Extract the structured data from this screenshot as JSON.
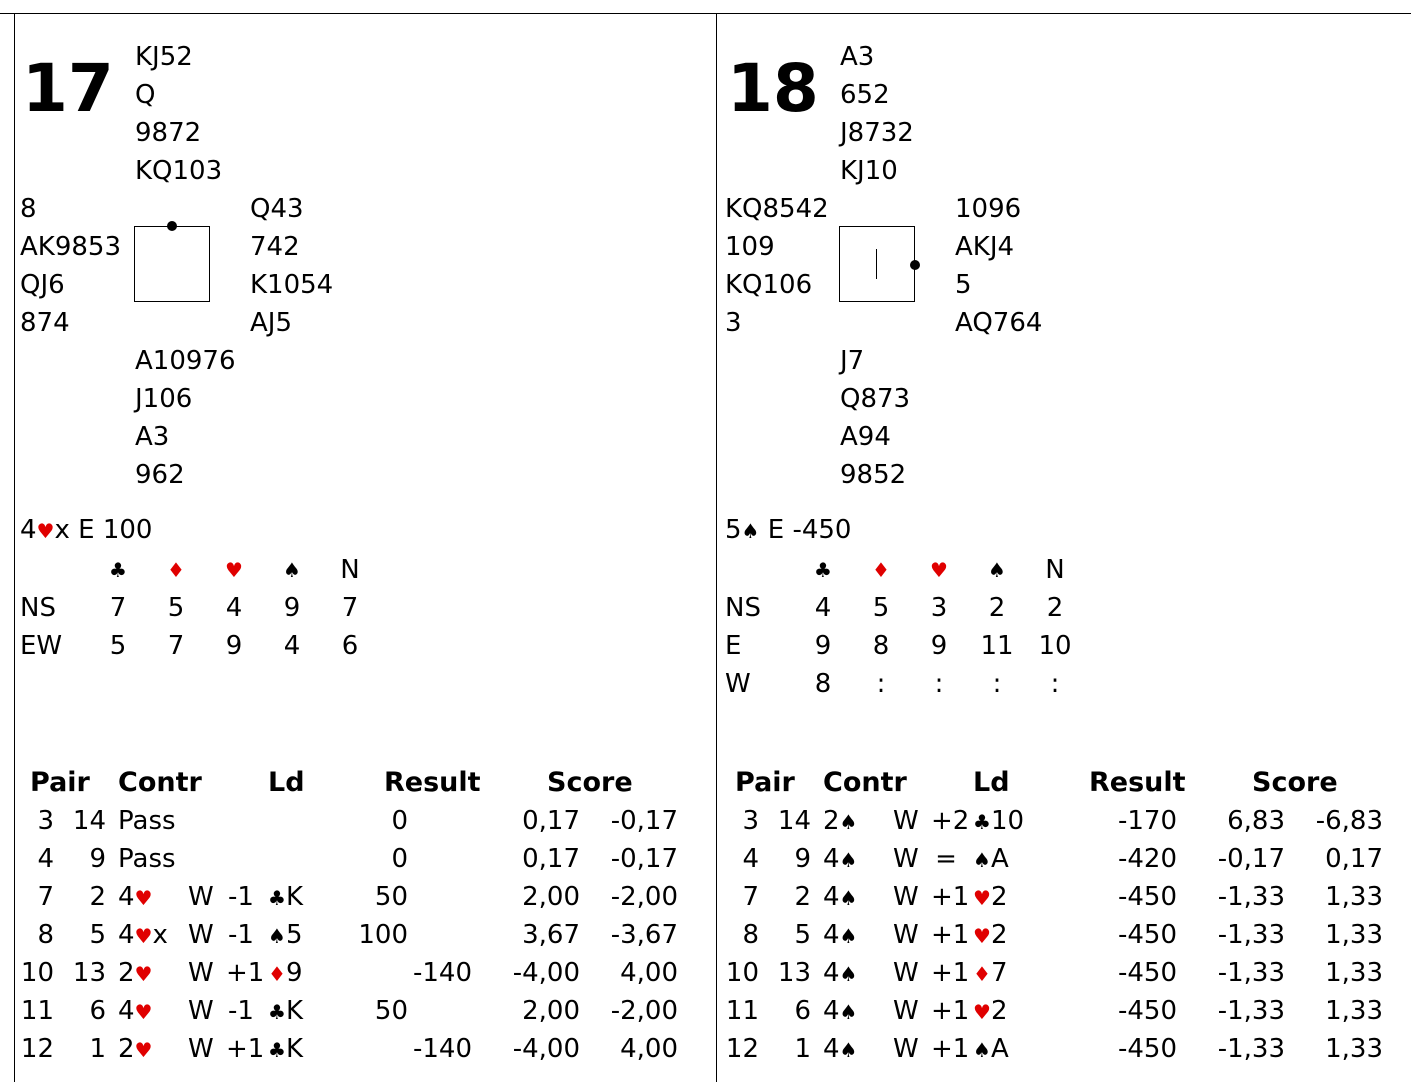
{
  "boards": [
    {
      "number": "17",
      "north": [
        "KJ52",
        "Q",
        "9872",
        "KQ103"
      ],
      "west": [
        "8",
        "AK9853",
        "QJ6",
        "874"
      ],
      "east": [
        "Q43",
        "742",
        "K1054",
        "AJ5"
      ],
      "south": [
        "A10976",
        "J106",
        "A3",
        "962"
      ],
      "dealer_marker": "north",
      "vulnerability_marker": "none",
      "contract": {
        "level": "4",
        "suit": "♥",
        "suit_color": "red",
        "suffix": "x E 100"
      },
      "dd_suits": [
        {
          "symbol": "♣",
          "color": "black"
        },
        {
          "symbol": "♦",
          "color": "red"
        },
        {
          "symbol": "♥",
          "color": "red"
        },
        {
          "symbol": "♠",
          "color": "black"
        },
        {
          "symbol": "N",
          "color": "black"
        }
      ],
      "dd_rows": [
        {
          "label": "NS",
          "values": [
            "7",
            "5",
            "4",
            "9",
            "7"
          ]
        },
        {
          "label": "EW",
          "values": [
            "5",
            "7",
            "9",
            "4",
            "6"
          ]
        }
      ],
      "results_headers": {
        "pair": "Pair",
        "contract": "Contr",
        "lead": "Ld",
        "result": "Result",
        "score": "Score"
      },
      "results": [
        {
          "ns": "3",
          "ew": "14",
          "level": "Pass",
          "suit": "",
          "suit_color": "black",
          "dbl": "",
          "declarer": "",
          "tricks": "",
          "lead_suit": "",
          "lead_color": "black",
          "lead_card": "",
          "result_ns": "0",
          "result_ew": "",
          "score_ns": "0,17",
          "score_ew": "-0,17"
        },
        {
          "ns": "4",
          "ew": "9",
          "level": "Pass",
          "suit": "",
          "suit_color": "black",
          "dbl": "",
          "declarer": "",
          "tricks": "",
          "lead_suit": "",
          "lead_color": "black",
          "lead_card": "",
          "result_ns": "0",
          "result_ew": "",
          "score_ns": "0,17",
          "score_ew": "-0,17"
        },
        {
          "ns": "7",
          "ew": "2",
          "level": "4",
          "suit": "♥",
          "suit_color": "red",
          "dbl": "",
          "declarer": "W",
          "tricks": "-1",
          "lead_suit": "♣",
          "lead_color": "black",
          "lead_card": "K",
          "result_ns": "50",
          "result_ew": "",
          "score_ns": "2,00",
          "score_ew": "-2,00"
        },
        {
          "ns": "8",
          "ew": "5",
          "level": "4",
          "suit": "♥",
          "suit_color": "red",
          "dbl": "x",
          "declarer": "W",
          "tricks": "-1",
          "lead_suit": "♠",
          "lead_color": "black",
          "lead_card": "5",
          "result_ns": "100",
          "result_ew": "",
          "score_ns": "3,67",
          "score_ew": "-3,67"
        },
        {
          "ns": "10",
          "ew": "13",
          "level": "2",
          "suit": "♥",
          "suit_color": "red",
          "dbl": "",
          "declarer": "W",
          "tricks": "+1",
          "lead_suit": "♦",
          "lead_color": "red",
          "lead_card": "9",
          "result_ns": "",
          "result_ew": "-140",
          "score_ns": "-4,00",
          "score_ew": "4,00"
        },
        {
          "ns": "11",
          "ew": "6",
          "level": "4",
          "suit": "♥",
          "suit_color": "red",
          "dbl": "",
          "declarer": "W",
          "tricks": "-1",
          "lead_suit": "♣",
          "lead_color": "black",
          "lead_card": "K",
          "result_ns": "50",
          "result_ew": "",
          "score_ns": "2,00",
          "score_ew": "-2,00"
        },
        {
          "ns": "12",
          "ew": "1",
          "level": "2",
          "suit": "♥",
          "suit_color": "red",
          "dbl": "",
          "declarer": "W",
          "tricks": "+1",
          "lead_suit": "♣",
          "lead_color": "black",
          "lead_card": "K",
          "result_ns": "",
          "result_ew": "-140",
          "score_ns": "-4,00",
          "score_ew": "4,00"
        }
      ]
    },
    {
      "number": "18",
      "north": [
        "A3",
        "652",
        "J8732",
        "KJ10"
      ],
      "west": [
        "KQ8542",
        "109",
        "KQ106",
        "3"
      ],
      "east": [
        "1096",
        "AKJ4",
        "5",
        "AQ764"
      ],
      "south": [
        "J7",
        "Q873",
        "A94",
        "9852"
      ],
      "dealer_marker": "east",
      "vulnerability_marker": "north-south",
      "contract": {
        "level": "5",
        "suit": "♠",
        "suit_color": "black",
        "suffix": " E -450"
      },
      "dd_suits": [
        {
          "symbol": "♣",
          "color": "black"
        },
        {
          "symbol": "♦",
          "color": "red"
        },
        {
          "symbol": "♥",
          "color": "red"
        },
        {
          "symbol": "♠",
          "color": "black"
        },
        {
          "symbol": "N",
          "color": "black"
        }
      ],
      "dd_rows": [
        {
          "label": "NS",
          "values": [
            "4",
            "5",
            "3",
            "2",
            "2"
          ]
        },
        {
          "label": "E",
          "values": [
            "9",
            "8",
            "9",
            "11",
            "10"
          ]
        },
        {
          "label": "W",
          "values": [
            "8",
            ":",
            ":",
            ":",
            ":"
          ]
        }
      ],
      "results_headers": {
        "pair": "Pair",
        "contract": "Contr",
        "lead": "Ld",
        "result": "Result",
        "score": "Score"
      },
      "results": [
        {
          "ns": "3",
          "ew": "14",
          "level": "2",
          "suit": "♠",
          "suit_color": "black",
          "dbl": "",
          "declarer": "W",
          "tricks": "+2",
          "lead_suit": "♣",
          "lead_color": "black",
          "lead_card": "10",
          "result_ns": "",
          "result_ew": "-170",
          "score_ns": "6,83",
          "score_ew": "-6,83"
        },
        {
          "ns": "4",
          "ew": "9",
          "level": "4",
          "suit": "♠",
          "suit_color": "black",
          "dbl": "",
          "declarer": "W",
          "tricks": "=",
          "lead_suit": "♠",
          "lead_color": "black",
          "lead_card": "A",
          "result_ns": "",
          "result_ew": "-420",
          "score_ns": "-0,17",
          "score_ew": "0,17"
        },
        {
          "ns": "7",
          "ew": "2",
          "level": "4",
          "suit": "♠",
          "suit_color": "black",
          "dbl": "",
          "declarer": "W",
          "tricks": "+1",
          "lead_suit": "♥",
          "lead_color": "red",
          "lead_card": "2",
          "result_ns": "",
          "result_ew": "-450",
          "score_ns": "-1,33",
          "score_ew": "1,33"
        },
        {
          "ns": "8",
          "ew": "5",
          "level": "4",
          "suit": "♠",
          "suit_color": "black",
          "dbl": "",
          "declarer": "W",
          "tricks": "+1",
          "lead_suit": "♥",
          "lead_color": "red",
          "lead_card": "2",
          "result_ns": "",
          "result_ew": "-450",
          "score_ns": "-1,33",
          "score_ew": "1,33"
        },
        {
          "ns": "10",
          "ew": "13",
          "level": "4",
          "suit": "♠",
          "suit_color": "black",
          "dbl": "",
          "declarer": "W",
          "tricks": "+1",
          "lead_suit": "♦",
          "lead_color": "red",
          "lead_card": "7",
          "result_ns": "",
          "result_ew": "-450",
          "score_ns": "-1,33",
          "score_ew": "1,33"
        },
        {
          "ns": "11",
          "ew": "6",
          "level": "4",
          "suit": "♠",
          "suit_color": "black",
          "dbl": "",
          "declarer": "W",
          "tricks": "+1",
          "lead_suit": "♥",
          "lead_color": "red",
          "lead_card": "2",
          "result_ns": "",
          "result_ew": "-450",
          "score_ns": "-1,33",
          "score_ew": "1,33"
        },
        {
          "ns": "12",
          "ew": "1",
          "level": "4",
          "suit": "♠",
          "suit_color": "black",
          "dbl": "",
          "declarer": "W",
          "tricks": "+1",
          "lead_suit": "♠",
          "lead_color": "black",
          "lead_card": "A",
          "result_ns": "",
          "result_ew": "-450",
          "score_ns": "-1,33",
          "score_ew": "1,33"
        }
      ]
    }
  ]
}
